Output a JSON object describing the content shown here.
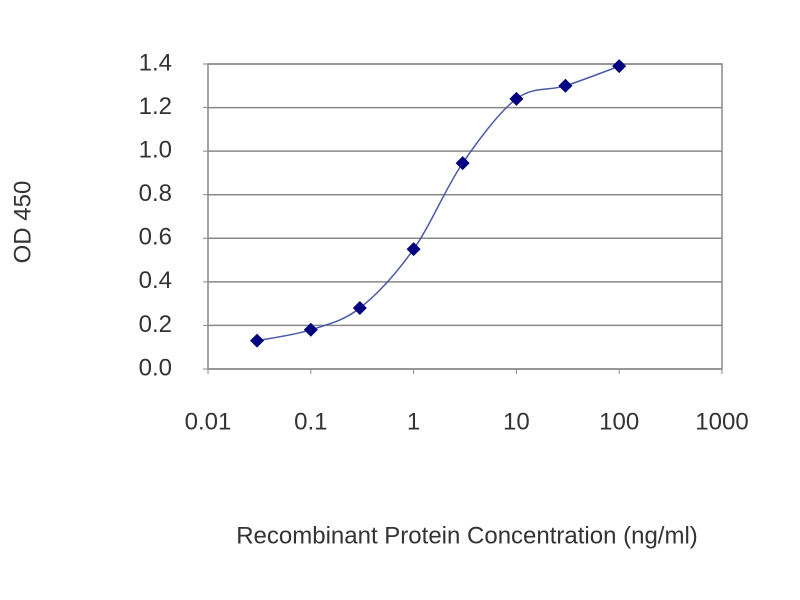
{
  "chart_data": {
    "type": "line",
    "x_label": "Recombinant Protein Concentration (ng/ml)",
    "y_label": "OD 450",
    "x": [
      0.03,
      0.1,
      0.3,
      1,
      3,
      10,
      30,
      100
    ],
    "series": [
      {
        "color": "#000080",
        "values": [
          0.13,
          0.18,
          0.28,
          0.55,
          0.945,
          1.24,
          1.3,
          1.39
        ]
      }
    ],
    "xlim": [
      0.01,
      1000
    ],
    "ylim": [
      0,
      1.4
    ],
    "xscale": "log",
    "xticks": [
      0.01,
      0.1,
      1,
      10,
      100,
      1000
    ],
    "yticks": [
      {
        "value": 0,
        "label": "0.0"
      },
      0.2,
      0.4,
      0.6,
      0.8,
      {
        "value": 1,
        "label": "1.0"
      },
      1.2,
      1.4
    ],
    "grid": true
  }
}
